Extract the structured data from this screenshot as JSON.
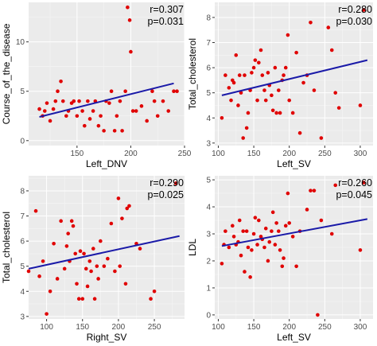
{
  "chart_data": [
    {
      "type": "scatter",
      "xlabel": "Left_DNV",
      "ylabel": "Course_of_the_disease",
      "xlim": [
        105,
        250
      ],
      "ylim": [
        -0.5,
        14
      ],
      "xticks": [
        150,
        200,
        250
      ],
      "yticks": [
        0,
        5,
        10
      ],
      "annotation": [
        "r=0.307",
        "p=0.031"
      ],
      "fit": {
        "x": [
          115,
          240
        ],
        "y": [
          2.4,
          5.8
        ]
      },
      "points": [
        [
          115,
          3.2
        ],
        [
          118,
          2.5
        ],
        [
          120,
          3
        ],
        [
          122,
          3.8
        ],
        [
          125,
          2
        ],
        [
          128,
          3.2
        ],
        [
          130,
          4
        ],
        [
          132,
          5
        ],
        [
          135,
          6
        ],
        [
          137,
          4
        ],
        [
          140,
          2.5
        ],
        [
          142,
          3
        ],
        [
          145,
          3.8
        ],
        [
          147,
          4
        ],
        [
          150,
          2.5
        ],
        [
          152,
          4
        ],
        [
          155,
          3
        ],
        [
          157,
          1.5
        ],
        [
          160,
          4
        ],
        [
          162,
          2.2
        ],
        [
          165,
          3
        ],
        [
          167,
          4
        ],
        [
          170,
          1.5
        ],
        [
          172,
          2.5
        ],
        [
          175,
          1
        ],
        [
          177,
          4
        ],
        [
          180,
          3.8
        ],
        [
          182,
          5
        ],
        [
          185,
          1
        ],
        [
          187,
          2.5
        ],
        [
          190,
          4
        ],
        [
          192,
          1
        ],
        [
          195,
          5
        ],
        [
          197,
          13.5
        ],
        [
          199,
          12.2
        ],
        [
          200,
          9
        ],
        [
          202,
          3
        ],
        [
          205,
          3
        ],
        [
          210,
          3.5
        ],
        [
          215,
          2
        ],
        [
          220,
          5
        ],
        [
          222,
          4
        ],
        [
          225,
          2.5
        ],
        [
          230,
          4
        ],
        [
          235,
          3
        ],
        [
          240,
          5
        ],
        [
          243,
          5
        ]
      ]
    },
    {
      "type": "scatter",
      "xlabel": "Left_SV",
      "ylabel": "Total_cholesterol",
      "xlim": [
        95,
        318
      ],
      "ylim": [
        2.9,
        8.6
      ],
      "xticks": [
        100,
        150,
        200,
        250,
        300
      ],
      "yticks": [
        3,
        4,
        5,
        6,
        7,
        8
      ],
      "annotation": [
        "r=0.280",
        "p=0.030"
      ],
      "fit": {
        "x": [
          105,
          310
        ],
        "y": [
          4.9,
          6.3
        ]
      },
      "points": [
        [
          105,
          4
        ],
        [
          110,
          5.7
        ],
        [
          115,
          5.2
        ],
        [
          118,
          4.7
        ],
        [
          120,
          5.5
        ],
        [
          122,
          5.4
        ],
        [
          125,
          6.5
        ],
        [
          128,
          4.5
        ],
        [
          130,
          5.7
        ],
        [
          132,
          5
        ],
        [
          135,
          3.2
        ],
        [
          137,
          5.7
        ],
        [
          140,
          3.6
        ],
        [
          142,
          4.2
        ],
        [
          145,
          5.1
        ],
        [
          147,
          5.8
        ],
        [
          150,
          6
        ],
        [
          152,
          6.3
        ],
        [
          155,
          4.7
        ],
        [
          157,
          6.2
        ],
        [
          160,
          6.7
        ],
        [
          162,
          5.7
        ],
        [
          165,
          5.1
        ],
        [
          167,
          4.7
        ],
        [
          170,
          5.8
        ],
        [
          172,
          5.3
        ],
        [
          175,
          4.9
        ],
        [
          177,
          4.3
        ],
        [
          180,
          6
        ],
        [
          182,
          4.2
        ],
        [
          185,
          5.1
        ],
        [
          187,
          4.2
        ],
        [
          190,
          5.5
        ],
        [
          192,
          5.7
        ],
        [
          195,
          6
        ],
        [
          198,
          7.3
        ],
        [
          200,
          4.7
        ],
        [
          205,
          4.2
        ],
        [
          210,
          6.6
        ],
        [
          215,
          3.4
        ],
        [
          220,
          5.4
        ],
        [
          225,
          5.7
        ],
        [
          230,
          7.8
        ],
        [
          235,
          5.1
        ],
        [
          245,
          3.2
        ],
        [
          255,
          7.6
        ],
        [
          260,
          6.7
        ],
        [
          265,
          5
        ],
        [
          270,
          4.4
        ],
        [
          300,
          4.5
        ],
        [
          305,
          8.3
        ]
      ]
    },
    {
      "type": "scatter",
      "xlabel": "Right_SV",
      "ylabel": "Total_cholesterol",
      "xlim": [
        75,
        292
      ],
      "ylim": [
        2.9,
        8.6
      ],
      "xticks": [
        100,
        150,
        200,
        250
      ],
      "yticks": [
        3,
        4,
        5,
        6,
        7,
        8
      ],
      "annotation": [
        "r=0.290",
        "p=0.025"
      ],
      "fit": {
        "x": [
          75,
          285
        ],
        "y": [
          4.9,
          6.2
        ]
      },
      "points": [
        [
          75,
          4.8
        ],
        [
          85,
          7.2
        ],
        [
          90,
          4.6
        ],
        [
          95,
          5.2
        ],
        [
          100,
          3.1
        ],
        [
          105,
          4
        ],
        [
          110,
          5.9
        ],
        [
          115,
          4.5
        ],
        [
          120,
          6.8
        ],
        [
          125,
          4.9
        ],
        [
          128,
          5.8
        ],
        [
          130,
          6.3
        ],
        [
          132,
          5.2
        ],
        [
          135,
          6.8
        ],
        [
          137,
          6.6
        ],
        [
          140,
          5.5
        ],
        [
          142,
          4.3
        ],
        [
          145,
          3.7
        ],
        [
          147,
          5.6
        ],
        [
          150,
          3.7
        ],
        [
          152,
          5.5
        ],
        [
          155,
          4.9
        ],
        [
          157,
          4.2
        ],
        [
          160,
          5.2
        ],
        [
          162,
          4.8
        ],
        [
          165,
          5.7
        ],
        [
          167,
          3.7
        ],
        [
          170,
          5
        ],
        [
          172,
          4.5
        ],
        [
          175,
          6
        ],
        [
          180,
          5
        ],
        [
          185,
          5.3
        ],
        [
          190,
          6.7
        ],
        [
          195,
          4.8
        ],
        [
          200,
          7.7
        ],
        [
          202,
          5
        ],
        [
          205,
          6.9
        ],
        [
          210,
          4.3
        ],
        [
          212,
          7.3
        ],
        [
          215,
          7.4
        ],
        [
          225,
          5.9
        ],
        [
          230,
          5.7
        ],
        [
          245,
          3.7
        ],
        [
          250,
          4
        ],
        [
          280,
          8.3
        ]
      ]
    },
    {
      "type": "scatter",
      "xlabel": "Left_SV",
      "ylabel": "LDL",
      "xlim": [
        95,
        318
      ],
      "ylim": [
        -0.15,
        5.15
      ],
      "xticks": [
        100,
        150,
        200,
        250,
        300
      ],
      "yticks": [
        0,
        1,
        2,
        3,
        4,
        5
      ],
      "annotation": [
        "r=0.260",
        "p=0.045"
      ],
      "fit": {
        "x": [
          105,
          310
        ],
        "y": [
          2.55,
          3.55
        ]
      },
      "points": [
        [
          105,
          1.9
        ],
        [
          108,
          2.6
        ],
        [
          110,
          3.1
        ],
        [
          115,
          2.5
        ],
        [
          120,
          3.3
        ],
        [
          122,
          2.9
        ],
        [
          125,
          2.6
        ],
        [
          128,
          2.7
        ],
        [
          130,
          3.5
        ],
        [
          132,
          2.2
        ],
        [
          135,
          3.1
        ],
        [
          137,
          1.6
        ],
        [
          140,
          3.1
        ],
        [
          142,
          2.5
        ],
        [
          145,
          1.4
        ],
        [
          147,
          2.4
        ],
        [
          150,
          3
        ],
        [
          152,
          3.6
        ],
        [
          155,
          2.6
        ],
        [
          157,
          3.5
        ],
        [
          160,
          2.9
        ],
        [
          162,
          2.8
        ],
        [
          165,
          2.5
        ],
        [
          167,
          3.2
        ],
        [
          170,
          2
        ],
        [
          172,
          2.7
        ],
        [
          175,
          3.1
        ],
        [
          177,
          3.8
        ],
        [
          180,
          2.6
        ],
        [
          182,
          3.4
        ],
        [
          185,
          3.1
        ],
        [
          187,
          2.4
        ],
        [
          190,
          1.8
        ],
        [
          192,
          2.1
        ],
        [
          195,
          3.3
        ],
        [
          198,
          4.5
        ],
        [
          200,
          3.4
        ],
        [
          205,
          2.9
        ],
        [
          210,
          1.8
        ],
        [
          215,
          3.1
        ],
        [
          225,
          3.9
        ],
        [
          230,
          4.6
        ],
        [
          235,
          4.6
        ],
        [
          240,
          0
        ],
        [
          245,
          3.5
        ],
        [
          260,
          3
        ],
        [
          265,
          4.8
        ],
        [
          300,
          2.4
        ],
        [
          305,
          4.9
        ]
      ]
    }
  ]
}
